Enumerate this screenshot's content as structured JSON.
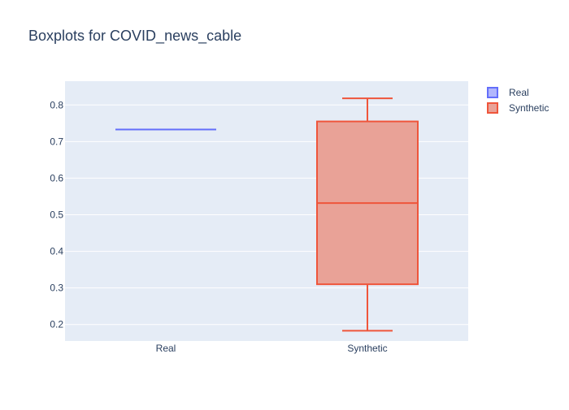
{
  "chart_data": {
    "type": "box",
    "title": "Boxplots for COVID_news_cable",
    "categories": [
      "Real",
      "Synthetic"
    ],
    "xlabel": "",
    "ylabel": "",
    "ylim": [
      0.155,
      0.865
    ],
    "yticks": [
      "0.2",
      "0.3",
      "0.4",
      "0.5",
      "0.6",
      "0.7",
      "0.8"
    ],
    "grid": true,
    "legend_position": "top-right",
    "series": [
      {
        "name": "Real",
        "category": "Real",
        "min": 0.733,
        "q1": 0.733,
        "median": 0.733,
        "q3": 0.733,
        "max": 0.733,
        "line_color": "#636efa",
        "fill_color": "#b1b6fc"
      },
      {
        "name": "Synthetic",
        "category": "Synthetic",
        "min": 0.183,
        "q1": 0.31,
        "median": 0.532,
        "q3": 0.755,
        "max": 0.818,
        "line_color": "#ef553b",
        "fill_color": "#e9a297"
      }
    ],
    "colors": {
      "plot_background": "#e5ecf6",
      "grid": "#ffffff",
      "text": "#2a3f5f"
    }
  }
}
